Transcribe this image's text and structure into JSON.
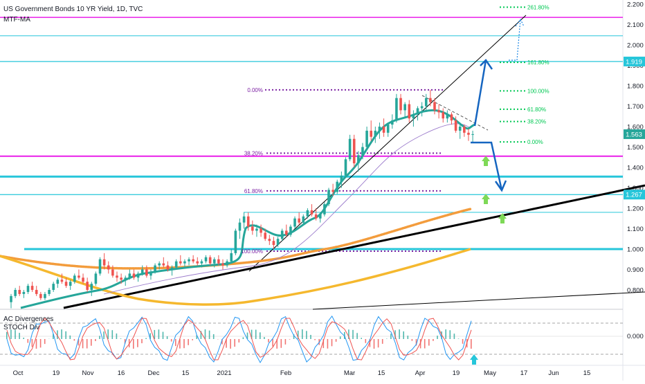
{
  "chart_data": {
    "type": "candlestick",
    "title": "US Government Bonds 10 YR Yield, 1D, TVC",
    "indicator_labels": [
      "MTF-MA",
      "AC Divergences",
      "STOCH Div"
    ],
    "y_axis": {
      "ylim": [
        0.75,
        2.2
      ],
      "ticks": [
        "2.200",
        "2.100",
        "2.000",
        "1.900",
        "1.800",
        "1.700",
        "1.600",
        "1.500",
        "1.400",
        "1.300",
        "1.200",
        "1.100",
        "1.000",
        "0.900",
        "0.800"
      ],
      "tick_values": [
        2.2,
        2.1,
        2.0,
        1.9,
        1.8,
        1.7,
        1.6,
        1.5,
        1.4,
        1.3,
        1.2,
        1.1,
        1.0,
        0.9,
        0.8
      ]
    },
    "x_axis": {
      "ticks": [
        "Oct",
        "19",
        "Nov",
        "16",
        "Dec",
        "15",
        "2021",
        "Feb",
        "Mar",
        "15",
        "Apr",
        "19",
        "May",
        "17",
        "Jun",
        "15"
      ]
    },
    "price_labels": [
      {
        "text": "1.919",
        "value": 1.919,
        "color": "#26c6da"
      },
      {
        "text": "1.563",
        "value": 1.563,
        "color": "#26a69a"
      },
      {
        "text": "1.267",
        "value": 1.267,
        "color": "#26c6da"
      }
    ],
    "horizontal_lines": [
      {
        "value": 2.135,
        "color": "#e91ee9"
      },
      {
        "value": 2.045,
        "color": "#26c6da"
      },
      {
        "value": 1.919,
        "color": "#26c6da"
      },
      {
        "value": 1.455,
        "color": "#e91ee9"
      },
      {
        "value": 1.355,
        "color": "#26c6da"
      },
      {
        "value": 1.267,
        "color": "#26c6da"
      },
      {
        "value": 1.18,
        "color": "#26c6da"
      },
      {
        "value": 1.0,
        "color": "#26c6da"
      }
    ],
    "fib_retracement": [
      {
        "label": "0.00%",
        "value": 1.78
      },
      {
        "label": "38.20%",
        "value": 1.47
      },
      {
        "label": "61.80%",
        "value": 1.285
      },
      {
        "label": "100.00%",
        "value": 0.99
      }
    ],
    "fib_extension": [
      {
        "label": "261.80%",
        "value": 2.185
      },
      {
        "label": "161.80%",
        "value": 1.915
      },
      {
        "label": "100.00%",
        "value": 1.775
      },
      {
        "label": "61.80%",
        "value": 1.685
      },
      {
        "label": "38.20%",
        "value": 1.625
      },
      {
        "label": "0.00%",
        "value": 1.525
      }
    ],
    "candles": [
      {
        "o": 0.74,
        "h": 0.78,
        "l": 0.71,
        "c": 0.77
      },
      {
        "o": 0.77,
        "h": 0.81,
        "l": 0.76,
        "c": 0.8
      },
      {
        "o": 0.8,
        "h": 0.82,
        "l": 0.77,
        "c": 0.78
      },
      {
        "o": 0.78,
        "h": 0.8,
        "l": 0.76,
        "c": 0.79
      },
      {
        "o": 0.79,
        "h": 0.83,
        "l": 0.78,
        "c": 0.82
      },
      {
        "o": 0.82,
        "h": 0.84,
        "l": 0.79,
        "c": 0.8
      },
      {
        "o": 0.8,
        "h": 0.82,
        "l": 0.77,
        "c": 0.78
      },
      {
        "o": 0.78,
        "h": 0.79,
        "l": 0.75,
        "c": 0.76
      },
      {
        "o": 0.76,
        "h": 0.79,
        "l": 0.75,
        "c": 0.78
      },
      {
        "o": 0.78,
        "h": 0.81,
        "l": 0.77,
        "c": 0.8
      },
      {
        "o": 0.8,
        "h": 0.84,
        "l": 0.79,
        "c": 0.83
      },
      {
        "o": 0.83,
        "h": 0.86,
        "l": 0.81,
        "c": 0.85
      },
      {
        "o": 0.85,
        "h": 0.88,
        "l": 0.83,
        "c": 0.84
      },
      {
        "o": 0.84,
        "h": 0.86,
        "l": 0.81,
        "c": 0.82
      },
      {
        "o": 0.82,
        "h": 0.85,
        "l": 0.8,
        "c": 0.84
      },
      {
        "o": 0.84,
        "h": 0.88,
        "l": 0.83,
        "c": 0.87
      },
      {
        "o": 0.87,
        "h": 0.9,
        "l": 0.85,
        "c": 0.86
      },
      {
        "o": 0.86,
        "h": 0.88,
        "l": 0.83,
        "c": 0.84
      },
      {
        "o": 0.84,
        "h": 0.86,
        "l": 0.79,
        "c": 0.8
      },
      {
        "o": 0.8,
        "h": 0.84,
        "l": 0.77,
        "c": 0.83
      },
      {
        "o": 0.83,
        "h": 0.89,
        "l": 0.82,
        "c": 0.88
      },
      {
        "o": 0.88,
        "h": 0.96,
        "l": 0.87,
        "c": 0.95
      },
      {
        "o": 0.95,
        "h": 0.98,
        "l": 0.9,
        "c": 0.92
      },
      {
        "o": 0.92,
        "h": 0.94,
        "l": 0.88,
        "c": 0.9
      },
      {
        "o": 0.9,
        "h": 0.92,
        "l": 0.86,
        "c": 0.87
      },
      {
        "o": 0.87,
        "h": 0.89,
        "l": 0.84,
        "c": 0.86
      },
      {
        "o": 0.86,
        "h": 0.88,
        "l": 0.83,
        "c": 0.85
      },
      {
        "o": 0.85,
        "h": 0.87,
        "l": 0.82,
        "c": 0.86
      },
      {
        "o": 0.86,
        "h": 0.9,
        "l": 0.85,
        "c": 0.88
      },
      {
        "o": 0.88,
        "h": 0.9,
        "l": 0.85,
        "c": 0.86
      },
      {
        "o": 0.86,
        "h": 0.89,
        "l": 0.84,
        "c": 0.88
      },
      {
        "o": 0.88,
        "h": 0.92,
        "l": 0.87,
        "c": 0.9
      },
      {
        "o": 0.9,
        "h": 0.92,
        "l": 0.86,
        "c": 0.87
      },
      {
        "o": 0.87,
        "h": 0.9,
        "l": 0.85,
        "c": 0.89
      },
      {
        "o": 0.89,
        "h": 0.93,
        "l": 0.88,
        "c": 0.92
      },
      {
        "o": 0.92,
        "h": 0.94,
        "l": 0.9,
        "c": 0.93
      },
      {
        "o": 0.93,
        "h": 0.96,
        "l": 0.91,
        "c": 0.92
      },
      {
        "o": 0.92,
        "h": 0.94,
        "l": 0.89,
        "c": 0.9
      },
      {
        "o": 0.9,
        "h": 0.92,
        "l": 0.87,
        "c": 0.91
      },
      {
        "o": 0.91,
        "h": 0.95,
        "l": 0.9,
        "c": 0.94
      },
      {
        "o": 0.94,
        "h": 0.97,
        "l": 0.92,
        "c": 0.93
      },
      {
        "o": 0.93,
        "h": 0.95,
        "l": 0.91,
        "c": 0.94
      },
      {
        "o": 0.94,
        "h": 0.96,
        "l": 0.92,
        "c": 0.95
      },
      {
        "o": 0.95,
        "h": 0.97,
        "l": 0.93,
        "c": 0.94
      },
      {
        "o": 0.94,
        "h": 0.96,
        "l": 0.92,
        "c": 0.93
      },
      {
        "o": 0.93,
        "h": 0.95,
        "l": 0.91,
        "c": 0.94
      },
      {
        "o": 0.94,
        "h": 0.97,
        "l": 0.93,
        "c": 0.96
      },
      {
        "o": 0.96,
        "h": 0.97,
        "l": 0.92,
        "c": 0.93
      },
      {
        "o": 0.93,
        "h": 0.96,
        "l": 0.91,
        "c": 0.95
      },
      {
        "o": 0.95,
        "h": 0.97,
        "l": 0.92,
        "c": 0.93
      },
      {
        "o": 0.93,
        "h": 0.95,
        "l": 0.9,
        "c": 0.92
      },
      {
        "o": 0.92,
        "h": 0.95,
        "l": 0.91,
        "c": 0.94
      },
      {
        "o": 0.94,
        "h": 1.0,
        "l": 0.93,
        "c": 0.98
      },
      {
        "o": 0.98,
        "h": 1.1,
        "l": 0.97,
        "c": 1.09
      },
      {
        "o": 1.09,
        "h": 1.15,
        "l": 1.05,
        "c": 1.13
      },
      {
        "o": 1.13,
        "h": 1.18,
        "l": 1.1,
        "c": 1.16
      },
      {
        "o": 1.16,
        "h": 1.18,
        "l": 1.09,
        "c": 1.11
      },
      {
        "o": 1.11,
        "h": 1.14,
        "l": 1.07,
        "c": 1.09
      },
      {
        "o": 1.09,
        "h": 1.12,
        "l": 1.06,
        "c": 1.1
      },
      {
        "o": 1.1,
        "h": 1.12,
        "l": 1.06,
        "c": 1.08
      },
      {
        "o": 1.08,
        "h": 1.1,
        "l": 1.04,
        "c": 1.05
      },
      {
        "o": 1.05,
        "h": 1.07,
        "l": 1.02,
        "c": 1.04
      },
      {
        "o": 1.04,
        "h": 1.06,
        "l": 1.0,
        "c": 1.02
      },
      {
        "o": 1.02,
        "h": 1.06,
        "l": 1.01,
        "c": 1.05
      },
      {
        "o": 1.05,
        "h": 1.1,
        "l": 1.04,
        "c": 1.09
      },
      {
        "o": 1.09,
        "h": 1.12,
        "l": 1.06,
        "c": 1.07
      },
      {
        "o": 1.07,
        "h": 1.12,
        "l": 1.06,
        "c": 1.11
      },
      {
        "o": 1.11,
        "h": 1.16,
        "l": 1.1,
        "c": 1.15
      },
      {
        "o": 1.15,
        "h": 1.18,
        "l": 1.12,
        "c": 1.13
      },
      {
        "o": 1.13,
        "h": 1.17,
        "l": 1.12,
        "c": 1.16
      },
      {
        "o": 1.16,
        "h": 1.2,
        "l": 1.15,
        "c": 1.19
      },
      {
        "o": 1.19,
        "h": 1.22,
        "l": 1.16,
        "c": 1.17
      },
      {
        "o": 1.17,
        "h": 1.2,
        "l": 1.14,
        "c": 1.15
      },
      {
        "o": 1.15,
        "h": 1.18,
        "l": 1.13,
        "c": 1.17
      },
      {
        "o": 1.17,
        "h": 1.23,
        "l": 1.16,
        "c": 1.22
      },
      {
        "o": 1.22,
        "h": 1.3,
        "l": 1.21,
        "c": 1.29
      },
      {
        "o": 1.29,
        "h": 1.32,
        "l": 1.26,
        "c": 1.28
      },
      {
        "o": 1.28,
        "h": 1.34,
        "l": 1.27,
        "c": 1.33
      },
      {
        "o": 1.33,
        "h": 1.38,
        "l": 1.3,
        "c": 1.36
      },
      {
        "o": 1.36,
        "h": 1.45,
        "l": 1.35,
        "c": 1.44
      },
      {
        "o": 1.44,
        "h": 1.56,
        "l": 1.43,
        "c": 1.54
      },
      {
        "o": 1.54,
        "h": 1.56,
        "l": 1.4,
        "c": 1.42
      },
      {
        "o": 1.42,
        "h": 1.48,
        "l": 1.38,
        "c": 1.46
      },
      {
        "o": 1.46,
        "h": 1.52,
        "l": 1.44,
        "c": 1.5
      },
      {
        "o": 1.5,
        "h": 1.6,
        "l": 1.49,
        "c": 1.58
      },
      {
        "o": 1.58,
        "h": 1.63,
        "l": 1.53,
        "c": 1.55
      },
      {
        "o": 1.55,
        "h": 1.6,
        "l": 1.52,
        "c": 1.58
      },
      {
        "o": 1.58,
        "h": 1.62,
        "l": 1.54,
        "c": 1.6
      },
      {
        "o": 1.6,
        "h": 1.64,
        "l": 1.55,
        "c": 1.57
      },
      {
        "o": 1.57,
        "h": 1.62,
        "l": 1.55,
        "c": 1.61
      },
      {
        "o": 1.61,
        "h": 1.66,
        "l": 1.59,
        "c": 1.63
      },
      {
        "o": 1.63,
        "h": 1.76,
        "l": 1.62,
        "c": 1.74
      },
      {
        "o": 1.74,
        "h": 1.76,
        "l": 1.66,
        "c": 1.68
      },
      {
        "o": 1.68,
        "h": 1.72,
        "l": 1.64,
        "c": 1.71
      },
      {
        "o": 1.71,
        "h": 1.73,
        "l": 1.62,
        "c": 1.64
      },
      {
        "o": 1.64,
        "h": 1.68,
        "l": 1.6,
        "c": 1.66
      },
      {
        "o": 1.66,
        "h": 1.7,
        "l": 1.63,
        "c": 1.69
      },
      {
        "o": 1.69,
        "h": 1.72,
        "l": 1.65,
        "c": 1.7
      },
      {
        "o": 1.7,
        "h": 1.76,
        "l": 1.68,
        "c": 1.74
      },
      {
        "o": 1.74,
        "h": 1.78,
        "l": 1.7,
        "c": 1.72
      },
      {
        "o": 1.72,
        "h": 1.74,
        "l": 1.66,
        "c": 1.68
      },
      {
        "o": 1.68,
        "h": 1.71,
        "l": 1.64,
        "c": 1.67
      },
      {
        "o": 1.67,
        "h": 1.69,
        "l": 1.62,
        "c": 1.64
      },
      {
        "o": 1.64,
        "h": 1.68,
        "l": 1.62,
        "c": 1.66
      },
      {
        "o": 1.66,
        "h": 1.67,
        "l": 1.61,
        "c": 1.63
      },
      {
        "o": 1.63,
        "h": 1.65,
        "l": 1.57,
        "c": 1.58
      },
      {
        "o": 1.58,
        "h": 1.62,
        "l": 1.54,
        "c": 1.6
      },
      {
        "o": 1.6,
        "h": 1.61,
        "l": 1.55,
        "c": 1.57
      },
      {
        "o": 1.57,
        "h": 1.59,
        "l": 1.53,
        "c": 1.56
      },
      {
        "o": 1.56,
        "h": 1.58,
        "l": 1.52,
        "c": 1.563
      }
    ]
  }
}
